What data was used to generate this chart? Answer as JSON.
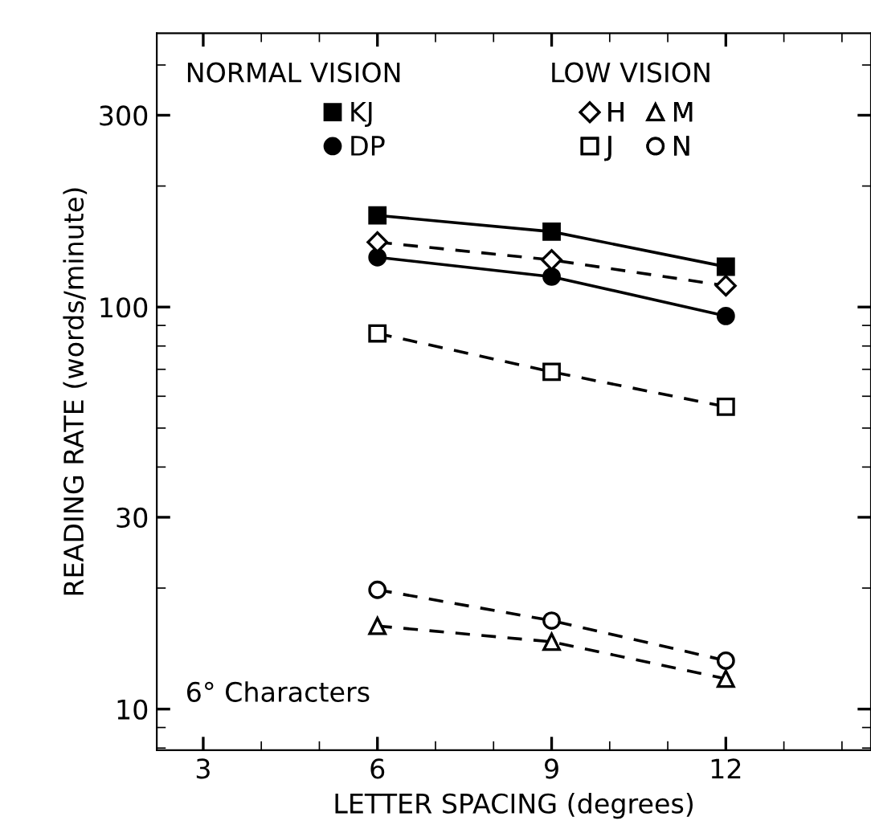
{
  "chart_data": {
    "type": "line",
    "xlabel": "LETTER SPACING (degrees)",
    "ylabel": "READING RATE (words/minute)",
    "x": [
      6,
      9,
      12
    ],
    "series": [
      {
        "name": "KJ",
        "color": "#000000",
        "marker": "square",
        "line_style": "solid",
        "values": [
          169,
          154,
          126
        ]
      },
      {
        "name": "DP",
        "color": "#000000",
        "marker": "circle",
        "line_style": "solid",
        "values": [
          133,
          119,
          95
        ]
      },
      {
        "name": "H",
        "color": "#000000",
        "marker": "diamond",
        "line_style": "dashed",
        "values": [
          145,
          131,
          113
        ]
      },
      {
        "name": "J",
        "color": "#000000",
        "marker": "square",
        "line_style": "dashed",
        "values": [
          86,
          69,
          56.5
        ]
      },
      {
        "name": "M",
        "color": "#000000",
        "marker": "triangle",
        "line_style": "dashed",
        "values": [
          16.1,
          14.7,
          11.9
        ]
      },
      {
        "name": "N",
        "color": "#000000",
        "marker": "circle",
        "line_style": "dashed",
        "values": [
          19.8,
          16.6,
          13.2
        ]
      }
    ],
    "log": "y",
    "xlim": [
      2.2,
      14.5
    ],
    "xticks": [
      3,
      6,
      9,
      12
    ],
    "ylim": [
      7.9,
      480
    ],
    "yticks": [
      10,
      30,
      100,
      300
    ],
    "grid": false,
    "legend": "top",
    "annotations": [
      "NORMAL VISION",
      "LOW VISION",
      "6° Characters"
    ]
  }
}
